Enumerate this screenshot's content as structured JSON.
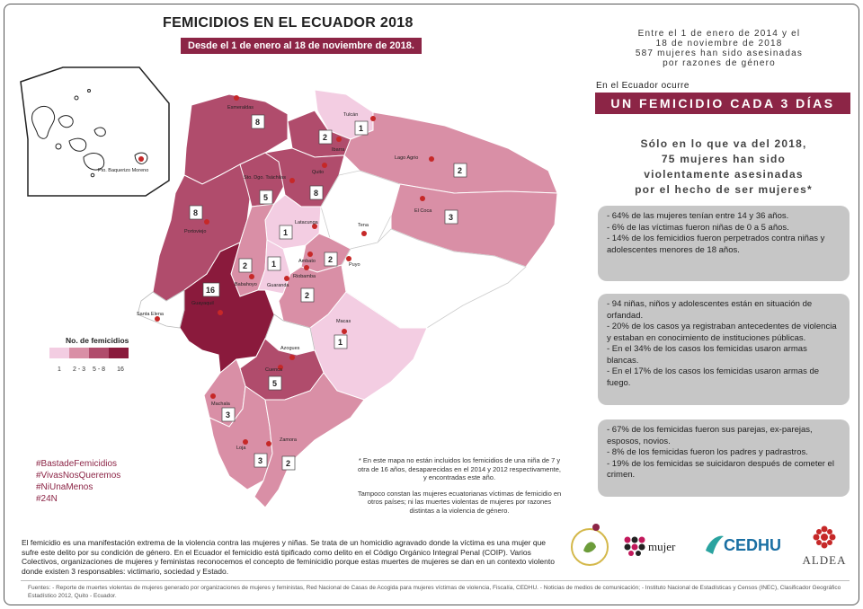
{
  "header": {
    "title": "FEMICIDIOS EN EL ECUADOR 2018",
    "subtitle": "Desde el 1 de enero al 18 de noviembre de 2018."
  },
  "intro": {
    "line1": "Entre el 1 de enero de 2014 y el",
    "line2": "18 de noviembre de 2018",
    "line3": "587 mujeres han sido asesinadas",
    "line4": "por razones de género"
  },
  "occurs_label": "En el Ecuador ocurre",
  "banner": "UN FEMICIDIO CADA 3 DÍAS",
  "headline": {
    "line1": "Sólo en lo que va del 2018,",
    "line2": "75 mujeres han sido",
    "line3": "violentamente asesinadas",
    "line4": "por el hecho de ser mujeres*"
  },
  "stats": {
    "box1": [
      "- 64% de las mujeres tenían entre 14 y 36 años.",
      "- 6% de las víctimas fueron niñas de 0 a 5 años.",
      "- 14% de los femicidios fueron perpetrados contra niñas y adolescentes menores de 18 años."
    ],
    "box2": [
      "- 94 niñas, niños y adolescentes están en situación de orfandad.",
      "- 20% de los casos ya registraban antecedentes de violencia y estaban en conocimiento de instituciones públicas.",
      "- En el 34% de los casos los femicidas usaron armas blancas.",
      "- En el 17% de los casos los femicidas usaron armas de fuego."
    ],
    "box3": [
      "- 67% de los femicidas fueron sus parejas, ex-parejas, esposos, novios.",
      "- 8% de los femicidas fueron los padres y padrastros.",
      "- 19% de los femicidas se suicidaron después de cometer el crimen."
    ]
  },
  "legend": {
    "title": "No. de femicidios",
    "classes": [
      {
        "label": "1",
        "color": "#f3cde2"
      },
      {
        "label": "2 - 3",
        "color": "#d98fa6"
      },
      {
        "label": "5 - 8",
        "color": "#b04c6c"
      },
      {
        "label": "16",
        "color": "#8a1a3c"
      }
    ]
  },
  "map": {
    "inset_city": "Pto. Baquerizo Moreno",
    "cities": [
      "Tulcán",
      "Ibarra",
      "Esmeraldas",
      "Lago Agrio",
      "Sto. Dgo. Tsáchilas",
      "Quito",
      "El Coca",
      "Tena",
      "Portoviejo",
      "Latacunga",
      "Ambato",
      "Puyo",
      "Riobamba",
      "Babahoyo",
      "Guaranda",
      "Santa Elena",
      "Guayaquil",
      "Macas",
      "Azogues",
      "Cuenca",
      "Machala",
      "Loja",
      "Zamora"
    ],
    "province_counts": {
      "Carchi": 1,
      "Imbabura": 2,
      "Esmeraldas": 8,
      "Sucumbios": 2,
      "Santo Domingo": 5,
      "Pichincha": 8,
      "Orellana": 3,
      "Manabi": 8,
      "Cotopaxi": 1,
      "Tungurahua": 2,
      "Los Rios": 2,
      "Bolivar": 1,
      "Chimborazo": 2,
      "Guayas": 16,
      "Morona Santiago": 1,
      "Azuay": 5,
      "El Oro": 3,
      "Loja": 3,
      "Zamora Chinchipe": 2
    }
  },
  "hashtags": [
    "#BastadeFemicidios",
    "#VivasNosQueremos",
    "#NiUnaMenos",
    "#24N"
  ],
  "note": {
    "p1": "* En este mapa no están incluidos los femicidios de una niña de 7 y otra de 16 años, desaparecidas en el 2014 y 2012 respectivamente, y encontradas este año.",
    "p2": "Tampoco constan las mujeres ecuatorianas víctimas de femicidio en otros países; ni las muertes violentas de mujeres por razones distintas a la violencia de género."
  },
  "bottom_text": "El femicidio es una manifestación extrema de la violencia contra las mujeres y niñas. Se trata de un homicidio agravado donde la víctima es una mujer que sufre este delito por su condición de género. En el Ecuador el femicidio está tipificado como delito en el Código Orgánico Integral Penal (COIP). Varios Colectivos, organizaciones de mujeres y feministas reconocemos el concepto de feminicidio porque estas muertes de mujeres se dan en un contexto violento donde existen 3 responsables: victimario, sociedad y Estado.",
  "sources": "Fuentes: - Reporte de muertes violentas de mujeres generado por organizaciones de mujeres y feministas, Red Nacional de Casas de Acogida para mujeres víctimas de violencia, Fiscalía, CEDHU. - Noticias de medios de comunicación; - Instituto Nacional de Estadísticas y Censos (INEC), Clasificador Geográfico Estadístico 2012, Quito - Ecuador.",
  "logos": {
    "mujer": "mujer",
    "cedhu": "CEDHU",
    "aldea": "ALDEA"
  },
  "colors": {
    "accent": "#8c2546",
    "c1": "#f3cde2",
    "c2": "#d98fa6",
    "c3": "#b04c6c",
    "c4": "#8a1a3c",
    "statbox": "#c6c6c6"
  }
}
